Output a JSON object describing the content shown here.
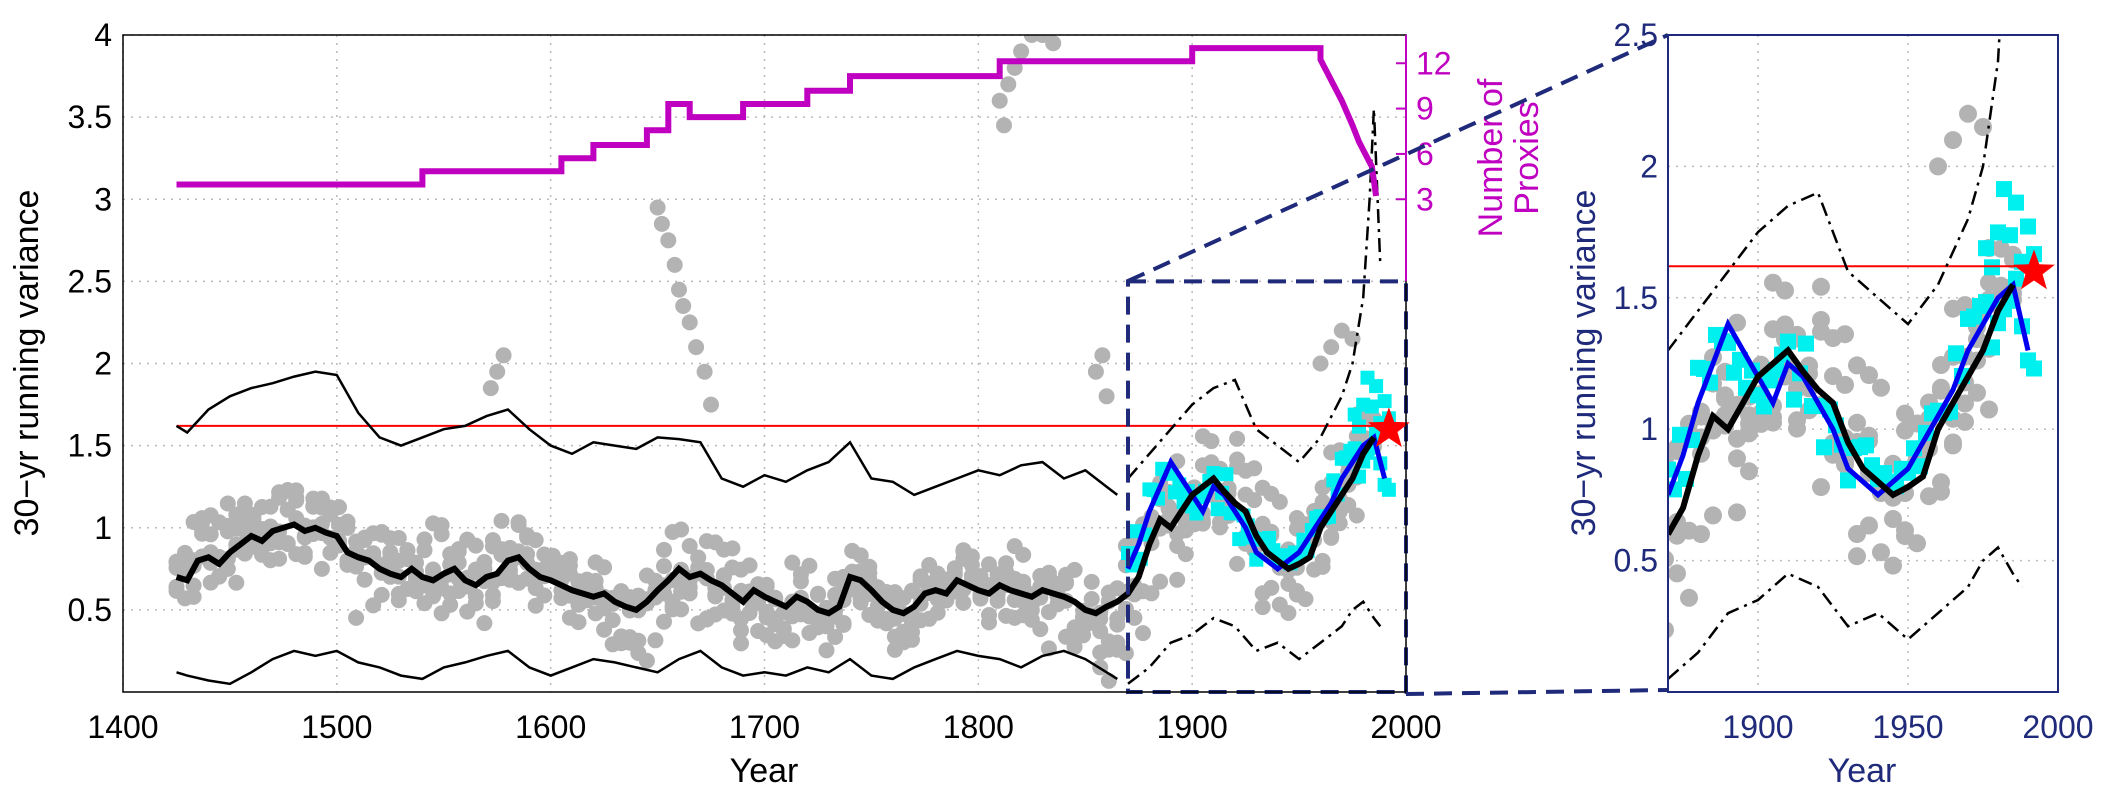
{
  "chart_data": [
    {
      "type": "line",
      "xlabel": "Year",
      "ylabel": "30−yr running variance",
      "xlim": [
        1400,
        2000
      ],
      "ylim": [
        0,
        4
      ],
      "xticks": [
        "1400",
        "1500",
        "1600",
        "1700",
        "1800",
        "1900",
        "2000"
      ],
      "yticks": [
        "0.5",
        "1",
        "1.5",
        "2",
        "2.5",
        "3",
        "3.5",
        "4"
      ],
      "grid": true,
      "threshold": 1.62,
      "star": {
        "x": 1992,
        "y": 1.6
      },
      "inset_box": {
        "x": [
          1870,
          2000
        ],
        "y": [
          0,
          2.5
        ]
      },
      "right_axis": {
        "label_lines": [
          "Number of",
          "Proxies"
        ],
        "ticks": [
          "3",
          "6",
          "9",
          "12"
        ],
        "tick_values": [
          3,
          6,
          9,
          12
        ]
      },
      "series": [
        {
          "role": "proxy-count",
          "color": "#c000c0",
          "x": [
            1425,
            1540,
            1540,
            1605,
            1605,
            1620,
            1620,
            1645,
            1645,
            1655,
            1655,
            1665,
            1665,
            1690,
            1690,
            1720,
            1720,
            1740,
            1740,
            1810,
            1810,
            1900,
            1900,
            1960,
            1960,
            1970,
            1975,
            1978,
            1982,
            1984,
            1986
          ],
          "y": [
            3.09,
            3.09,
            3.17,
            3.17,
            3.25,
            3.25,
            3.33,
            3.33,
            3.42,
            3.42,
            3.58,
            3.58,
            3.5,
            3.5,
            3.58,
            3.58,
            3.66,
            3.66,
            3.75,
            3.75,
            3.84,
            3.84,
            3.92,
            3.92,
            3.85,
            3.6,
            3.45,
            3.35,
            3.25,
            3.2,
            3.02
          ]
        },
        {
          "role": "upper-bound",
          "color": "#000000",
          "x": [
            1425,
            1430,
            1440,
            1450,
            1460,
            1470,
            1480,
            1490,
            1500,
            1510,
            1520,
            1530,
            1540,
            1550,
            1560,
            1570,
            1580,
            1590,
            1600,
            1610,
            1620,
            1630,
            1640,
            1650,
            1660,
            1670,
            1680,
            1690,
            1700,
            1710,
            1720,
            1730,
            1740,
            1750,
            1760,
            1770,
            1780,
            1790,
            1800,
            1810,
            1820,
            1830,
            1840,
            1850,
            1860,
            1865
          ],
          "y": [
            1.62,
            1.58,
            1.72,
            1.8,
            1.85,
            1.88,
            1.92,
            1.95,
            1.93,
            1.7,
            1.55,
            1.5,
            1.55,
            1.6,
            1.62,
            1.68,
            1.72,
            1.6,
            1.5,
            1.45,
            1.52,
            1.5,
            1.48,
            1.55,
            1.54,
            1.52,
            1.3,
            1.25,
            1.32,
            1.28,
            1.35,
            1.4,
            1.52,
            1.3,
            1.28,
            1.2,
            1.25,
            1.3,
            1.35,
            1.32,
            1.38,
            1.4,
            1.3,
            1.35,
            1.25,
            1.2
          ]
        },
        {
          "role": "lower-bound",
          "color": "#000000",
          "x": [
            1425,
            1430,
            1440,
            1450,
            1460,
            1470,
            1480,
            1490,
            1500,
            1510,
            1520,
            1530,
            1540,
            1550,
            1560,
            1570,
            1580,
            1590,
            1600,
            1610,
            1620,
            1630,
            1640,
            1650,
            1660,
            1670,
            1680,
            1690,
            1700,
            1710,
            1720,
            1730,
            1740,
            1750,
            1760,
            1770,
            1780,
            1790,
            1800,
            1810,
            1820,
            1830,
            1840,
            1850,
            1860,
            1865
          ],
          "y": [
            0.12,
            0.1,
            0.07,
            0.05,
            0.12,
            0.2,
            0.25,
            0.22,
            0.25,
            0.18,
            0.15,
            0.1,
            0.08,
            0.15,
            0.18,
            0.22,
            0.25,
            0.15,
            0.1,
            0.15,
            0.2,
            0.18,
            0.15,
            0.12,
            0.2,
            0.25,
            0.15,
            0.1,
            0.12,
            0.1,
            0.15,
            0.12,
            0.2,
            0.1,
            0.08,
            0.15,
            0.2,
            0.25,
            0.22,
            0.2,
            0.15,
            0.22,
            0.25,
            0.2,
            0.12,
            0.08
          ]
        },
        {
          "role": "mean",
          "color": "#000000",
          "x": [
            1425,
            1430,
            1435,
            1440,
            1445,
            1450,
            1455,
            1460,
            1465,
            1470,
            1475,
            1480,
            1485,
            1490,
            1495,
            1500,
            1505,
            1510,
            1515,
            1520,
            1525,
            1530,
            1535,
            1540,
            1545,
            1550,
            1555,
            1560,
            1565,
            1570,
            1575,
            1580,
            1585,
            1590,
            1595,
            1600,
            1605,
            1610,
            1615,
            1620,
            1625,
            1630,
            1635,
            1640,
            1645,
            1650,
            1655,
            1660,
            1665,
            1670,
            1675,
            1680,
            1685,
            1690,
            1695,
            1700,
            1705,
            1710,
            1715,
            1720,
            1725,
            1730,
            1735,
            1740,
            1745,
            1750,
            1755,
            1760,
            1765,
            1770,
            1775,
            1780,
            1785,
            1790,
            1795,
            1800,
            1805,
            1810,
            1815,
            1820,
            1825,
            1830,
            1835,
            1840,
            1845,
            1850,
            1855,
            1860,
            1865,
            1870,
            1875,
            1880,
            1885,
            1890,
            1895,
            1900,
            1905,
            1910,
            1915,
            1920,
            1925,
            1930,
            1935,
            1940,
            1945,
            1950,
            1955,
            1960,
            1965,
            1970,
            1975,
            1980,
            1985
          ],
          "y": [
            0.7,
            0.68,
            0.8,
            0.82,
            0.78,
            0.85,
            0.9,
            0.95,
            0.92,
            0.98,
            1.0,
            1.02,
            0.98,
            1.0,
            0.97,
            0.95,
            0.85,
            0.82,
            0.8,
            0.75,
            0.72,
            0.7,
            0.75,
            0.7,
            0.68,
            0.72,
            0.75,
            0.68,
            0.65,
            0.7,
            0.72,
            0.8,
            0.82,
            0.75,
            0.7,
            0.68,
            0.65,
            0.62,
            0.6,
            0.58,
            0.6,
            0.55,
            0.52,
            0.5,
            0.55,
            0.62,
            0.68,
            0.75,
            0.7,
            0.72,
            0.68,
            0.65,
            0.6,
            0.55,
            0.62,
            0.58,
            0.55,
            0.52,
            0.58,
            0.55,
            0.5,
            0.48,
            0.52,
            0.7,
            0.68,
            0.62,
            0.55,
            0.5,
            0.48,
            0.52,
            0.6,
            0.62,
            0.6,
            0.68,
            0.65,
            0.62,
            0.6,
            0.65,
            0.62,
            0.6,
            0.58,
            0.62,
            0.6,
            0.58,
            0.55,
            0.5,
            0.48,
            0.52,
            0.55,
            0.6,
            0.7,
            0.9,
            1.05,
            1.0,
            1.1,
            1.2,
            1.25,
            1.3,
            1.22,
            1.15,
            1.1,
            0.95,
            0.85,
            0.8,
            0.75,
            0.78,
            0.82,
            1.0,
            1.1,
            1.2,
            1.3,
            1.45,
            1.55
          ]
        },
        {
          "role": "blue-series",
          "color": "#0000ee",
          "x": [
            1870,
            1875,
            1880,
            1885,
            1890,
            1895,
            1900,
            1905,
            1910,
            1915,
            1920,
            1925,
            1930,
            1935,
            1940,
            1945,
            1950,
            1955,
            1960,
            1965,
            1970,
            1975,
            1980,
            1985,
            1990
          ],
          "y": [
            0.75,
            0.9,
            1.1,
            1.25,
            1.4,
            1.3,
            1.2,
            1.1,
            1.25,
            1.2,
            1.1,
            1.0,
            0.85,
            0.8,
            0.75,
            0.8,
            0.85,
            0.95,
            1.05,
            1.15,
            1.3,
            1.4,
            1.5,
            1.55,
            1.3
          ]
        },
        {
          "role": "upper-dashdot",
          "color": "#000000",
          "x": [
            1870,
            1880,
            1890,
            1900,
            1910,
            1920,
            1930,
            1940,
            1950,
            1960,
            1970,
            1975,
            1980,
            1983,
            1985,
            1988
          ],
          "y": [
            1.3,
            1.45,
            1.6,
            1.75,
            1.85,
            1.9,
            1.6,
            1.5,
            1.4,
            1.55,
            1.8,
            2.0,
            2.4,
            3.0,
            3.55,
            2.6
          ]
        },
        {
          "role": "lower-dashdot",
          "color": "#000000",
          "x": [
            1870,
            1880,
            1890,
            1900,
            1910,
            1920,
            1930,
            1940,
            1950,
            1960,
            1970,
            1975,
            1980,
            1985,
            1988
          ],
          "y": [
            0.05,
            0.15,
            0.3,
            0.35,
            0.45,
            0.4,
            0.25,
            0.3,
            0.2,
            0.3,
            0.4,
            0.5,
            0.55,
            0.45,
            0.4
          ]
        }
      ]
    },
    {
      "type": "line",
      "xlabel": "Year",
      "ylabel": "30−yr running variance",
      "xlim": [
        1870,
        2000
      ],
      "ylim": [
        0,
        2.5
      ],
      "xticks": [
        "1900",
        "1950",
        "2000"
      ],
      "yticks": [
        "0.5",
        "1",
        "1.5",
        "2",
        "2.5"
      ],
      "grid": true,
      "threshold": 1.62,
      "star": {
        "x": 1992,
        "y": 1.6
      }
    }
  ]
}
